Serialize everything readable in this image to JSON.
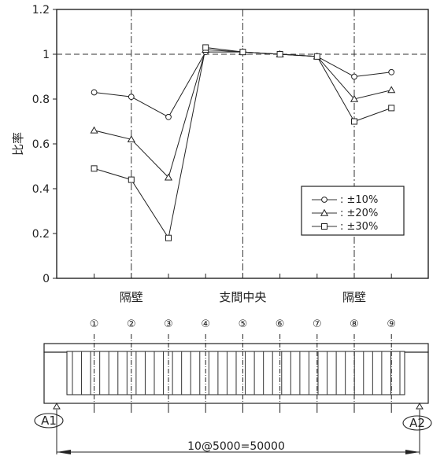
{
  "chart_data": {
    "type": "line",
    "ylabel": "比率",
    "ylim": [
      0,
      1.2
    ],
    "yticks": [
      "0",
      "0.2",
      "0.4",
      "0.6",
      "0.8",
      "1",
      "1.2"
    ],
    "xlim": [
      0,
      10
    ],
    "category_labels": [
      {
        "x": 2,
        "text": "隔壁"
      },
      {
        "x": 5,
        "text": "支間中央"
      },
      {
        "x": 8,
        "text": "隔壁"
      }
    ],
    "dashdot_vlines": [
      2,
      5,
      8
    ],
    "reference_hline": 1,
    "series": [
      {
        "name": "±10%",
        "marker": "circle",
        "x": [
          1,
          2,
          3,
          4,
          5,
          6,
          7,
          8,
          9
        ],
        "y": [
          0.83,
          0.81,
          0.72,
          1.01,
          1.01,
          1.0,
          0.99,
          0.9,
          0.92
        ]
      },
      {
        "name": "±20%",
        "marker": "triangle",
        "x": [
          1,
          2,
          3,
          4,
          5,
          6,
          7,
          8,
          9
        ],
        "y": [
          0.66,
          0.62,
          0.45,
          1.02,
          1.01,
          1.0,
          0.99,
          0.8,
          0.84
        ]
      },
      {
        "name": "±30%",
        "marker": "square",
        "x": [
          1,
          2,
          3,
          4,
          5,
          6,
          7,
          8,
          9
        ],
        "y": [
          0.49,
          0.44,
          0.18,
          1.03,
          1.01,
          1.0,
          0.99,
          0.7,
          0.76
        ]
      }
    ],
    "legend": {
      "placement": "lower-right",
      "entries": [
        {
          "marker": "circle",
          "text": ": ±10%"
        },
        {
          "marker": "triangle",
          "text": ": ±20%"
        },
        {
          "marker": "square",
          "text": ": ±30%"
        }
      ]
    },
    "grid": false
  },
  "diagram": {
    "panel_numbers": [
      "①",
      "②",
      "③",
      "④",
      "⑤",
      "⑥",
      "⑦",
      "⑧",
      "⑨"
    ],
    "support_left": "A1",
    "support_right": "A2",
    "dimension": "10@5000=50000"
  }
}
